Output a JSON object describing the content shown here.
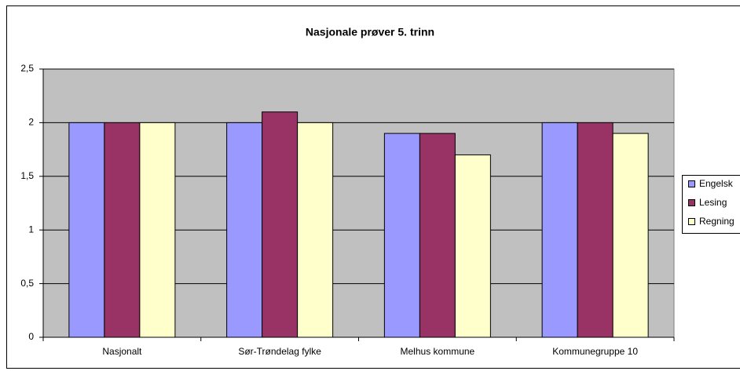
{
  "chart_data": {
    "type": "bar",
    "title": "Nasjonale prøver 5. trinn",
    "categories": [
      "Nasjonalt",
      "Sør-Trøndelag fylke",
      "Melhus kommune",
      "Kommunegruppe 10"
    ],
    "series": [
      {
        "name": "Engelsk",
        "color": "#9999ff",
        "values": [
          2,
          2,
          1.9,
          2
        ]
      },
      {
        "name": "Lesing",
        "color": "#993366",
        "values": [
          2,
          2.1,
          1.9,
          2
        ]
      },
      {
        "name": "Regning",
        "color": "#ffffcc",
        "values": [
          2,
          2,
          1.7,
          1.9
        ]
      }
    ],
    "ylim": [
      0,
      2.5
    ],
    "yticks": [
      0,
      {
        "value": 0.5,
        "label": "0,5"
      },
      1,
      {
        "value": 1.5,
        "label": "1,5"
      },
      2,
      {
        "value": 2.5,
        "label": "2,5"
      }
    ],
    "grid": true,
    "plot_background": "#c0c0c0",
    "legend": "right"
  }
}
